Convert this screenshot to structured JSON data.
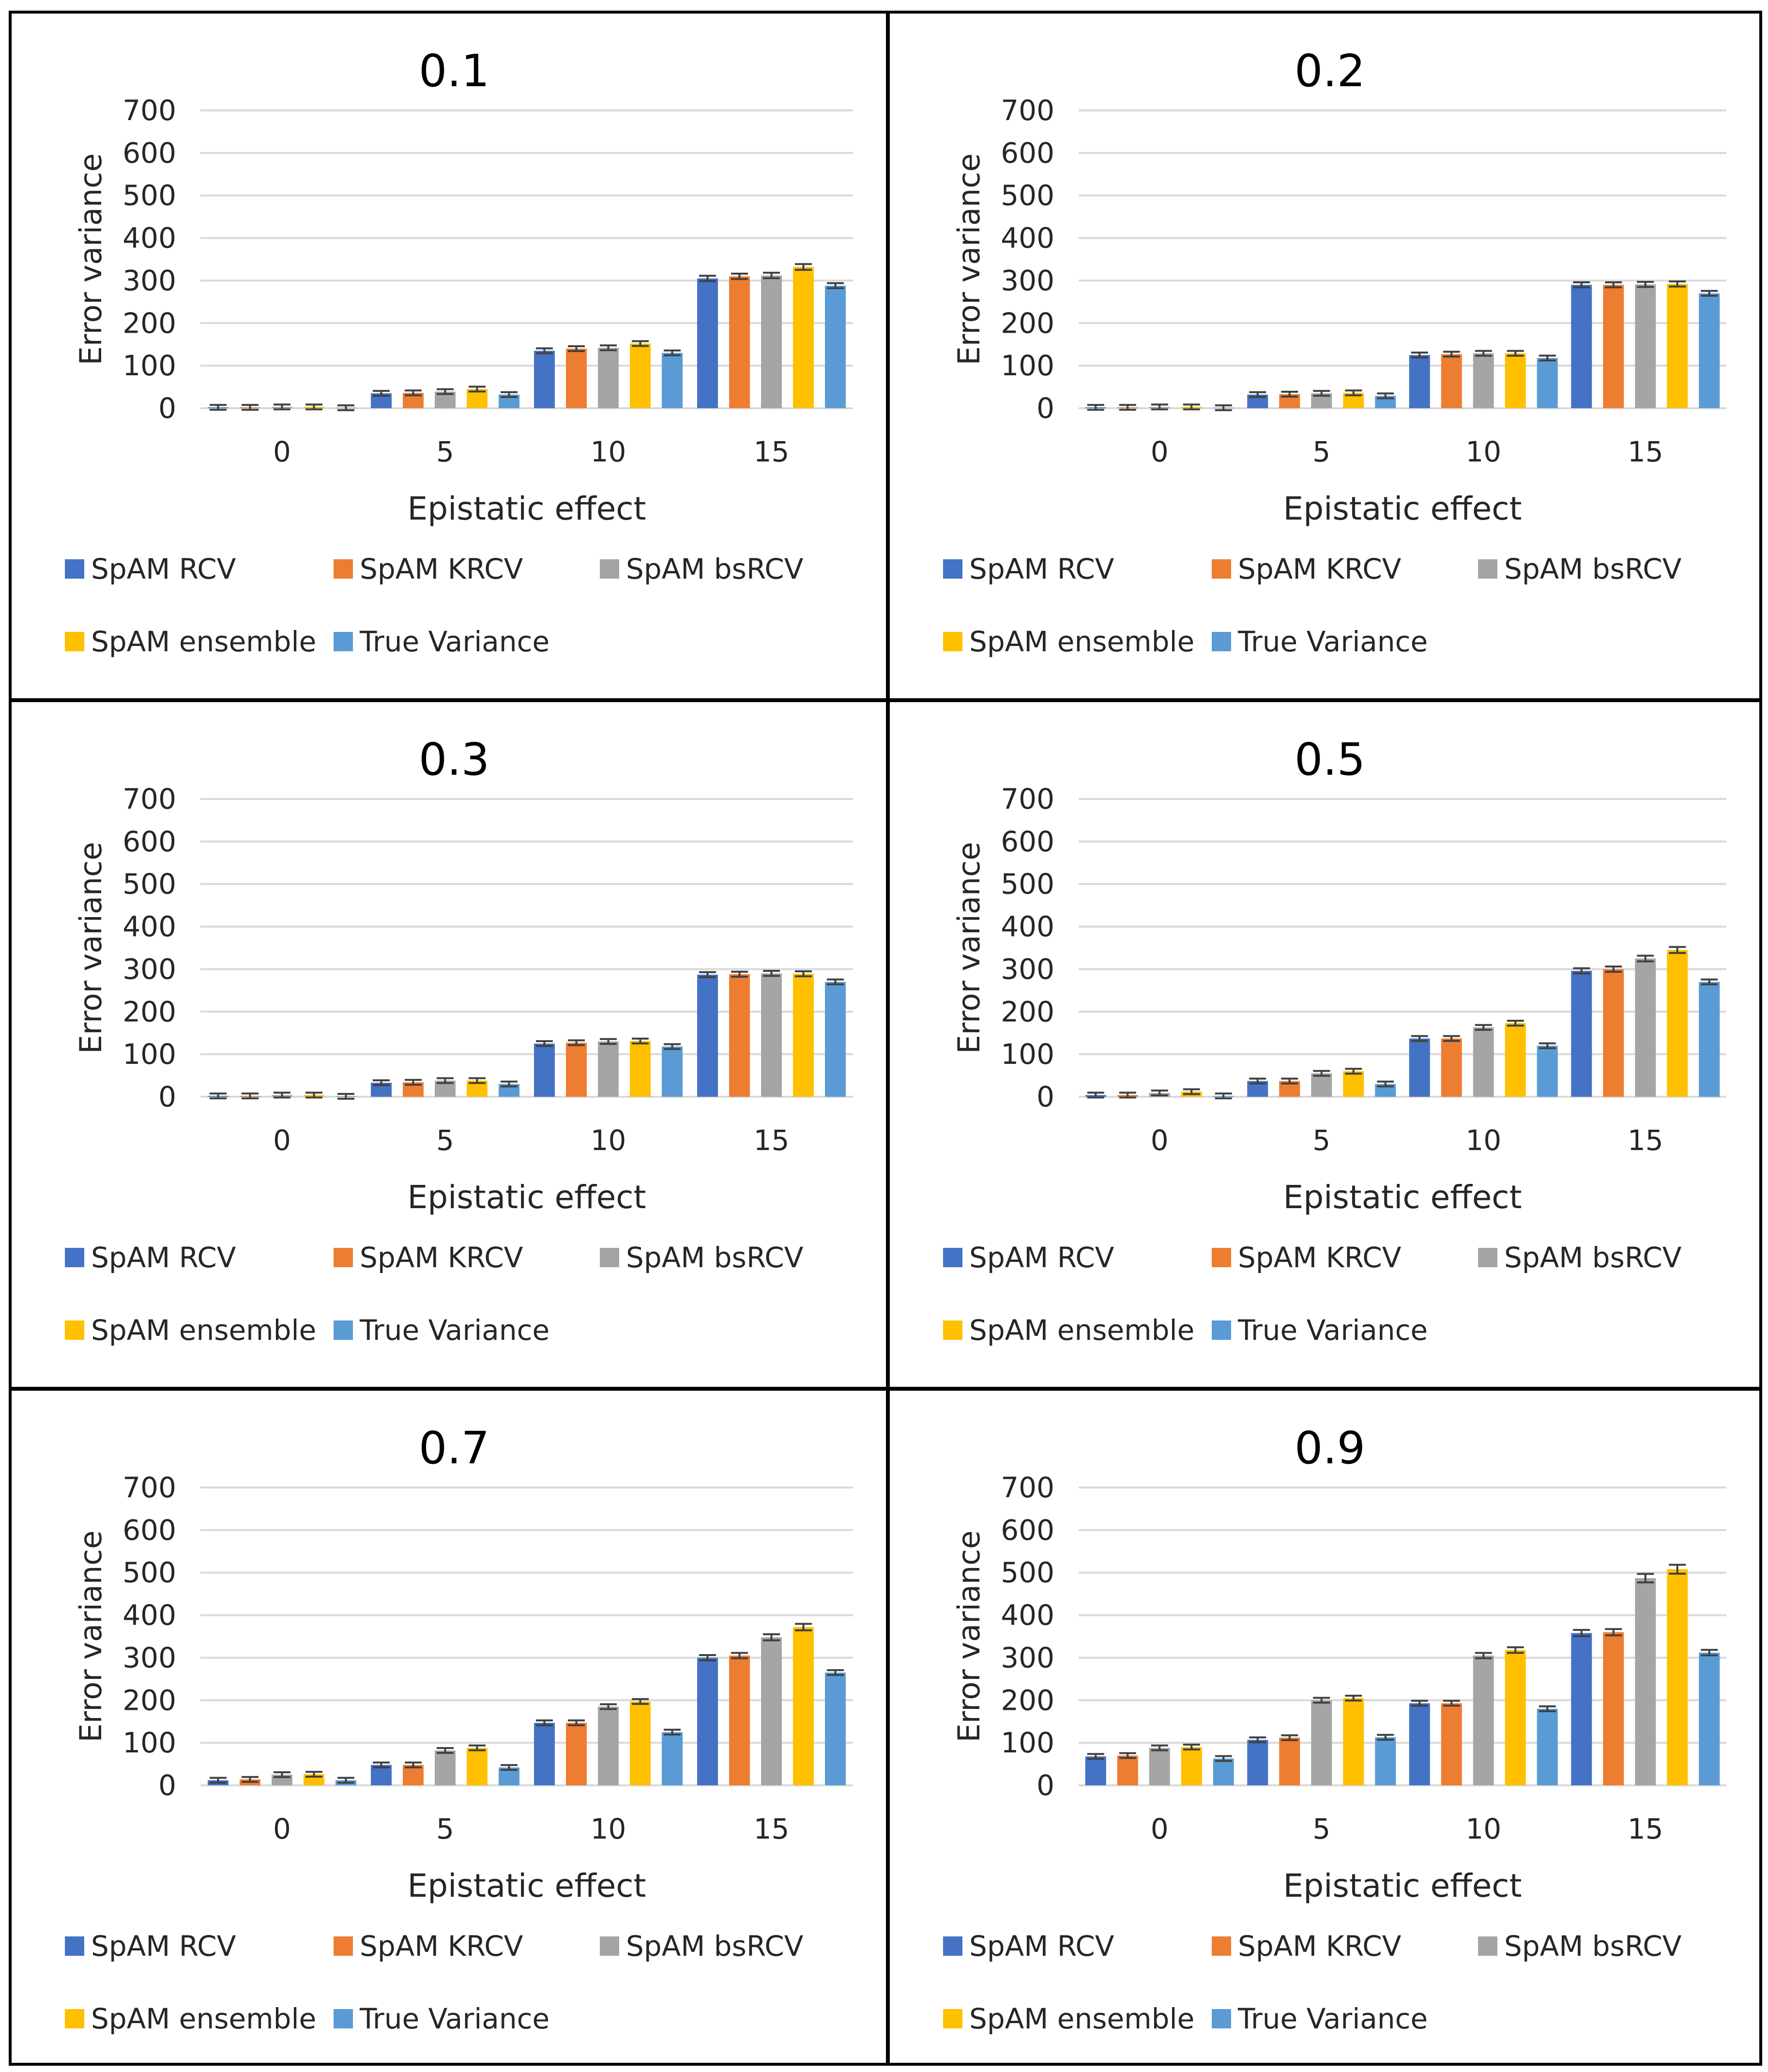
{
  "figure": {
    "series_names": [
      "SpAM RCV",
      "SpAM KRCV",
      "SpAM bsRCV",
      "SpAM ensemble",
      "True Variance"
    ],
    "series_colors": [
      "#4472C4",
      "#ED7D31",
      "#A5A5A5",
      "#FFC000",
      "#5B9BD5"
    ]
  },
  "chart_data": [
    {
      "type": "bar",
      "title": "0.1",
      "xlabel": "Epistatic effect",
      "ylabel": "Error variance",
      "categories": [
        "0",
        "5",
        "10",
        "15"
      ],
      "ylim": [
        0,
        700
      ],
      "yticks": [
        0,
        100,
        200,
        300,
        400,
        500,
        600,
        700
      ],
      "grid": true,
      "legend": "bottom",
      "series": [
        {
          "name": "SpAM RCV",
          "values": [
            2,
            35,
            135,
            305
          ]
        },
        {
          "name": "SpAM KRCV",
          "values": [
            2,
            36,
            140,
            310
          ]
        },
        {
          "name": "SpAM bsRCV",
          "values": [
            3,
            39,
            142,
            312
          ]
        },
        {
          "name": "SpAM ensemble",
          "values": [
            3,
            45,
            152,
            332
          ]
        },
        {
          "name": "True Variance",
          "values": [
            1,
            32,
            130,
            288
          ]
        }
      ]
    },
    {
      "type": "bar",
      "title": "0.2",
      "xlabel": "Epistatic effect",
      "ylabel": "Error variance",
      "categories": [
        "0",
        "5",
        "10",
        "15"
      ],
      "ylim": [
        0,
        700
      ],
      "yticks": [
        0,
        100,
        200,
        300,
        400,
        500,
        600,
        700
      ],
      "grid": true,
      "legend": "bottom",
      "series": [
        {
          "name": "SpAM RCV",
          "values": [
            2,
            32,
            125,
            290
          ]
        },
        {
          "name": "SpAM KRCV",
          "values": [
            2,
            33,
            127,
            290
          ]
        },
        {
          "name": "SpAM bsRCV",
          "values": [
            3,
            35,
            129,
            291
          ]
        },
        {
          "name": "SpAM ensemble",
          "values": [
            3,
            36,
            129,
            292
          ]
        },
        {
          "name": "True Variance",
          "values": [
            1,
            29,
            118,
            270
          ]
        }
      ]
    },
    {
      "type": "bar",
      "title": "0.3",
      "xlabel": "Epistatic effect",
      "ylabel": "Error variance",
      "categories": [
        "0",
        "5",
        "10",
        "15"
      ],
      "ylim": [
        0,
        700
      ],
      "yticks": [
        0,
        100,
        200,
        300,
        400,
        500,
        600,
        700
      ],
      "grid": true,
      "legend": "bottom",
      "series": [
        {
          "name": "SpAM RCV",
          "values": [
            2,
            33,
            125,
            287
          ]
        },
        {
          "name": "SpAM KRCV",
          "values": [
            2,
            34,
            127,
            288
          ]
        },
        {
          "name": "SpAM bsRCV",
          "values": [
            4,
            38,
            130,
            290
          ]
        },
        {
          "name": "SpAM ensemble",
          "values": [
            4,
            38,
            131,
            289
          ]
        },
        {
          "name": "True Variance",
          "values": [
            1,
            30,
            118,
            270
          ]
        }
      ]
    },
    {
      "type": "bar",
      "title": "0.5",
      "xlabel": "Epistatic effect",
      "ylabel": "Error variance",
      "categories": [
        "0",
        "5",
        "10",
        "15"
      ],
      "ylim": [
        0,
        700
      ],
      "yticks": [
        0,
        100,
        200,
        300,
        400,
        500,
        600,
        700
      ],
      "grid": true,
      "legend": "bottom",
      "series": [
        {
          "name": "SpAM RCV",
          "values": [
            4,
            37,
            137,
            296
          ]
        },
        {
          "name": "SpAM KRCV",
          "values": [
            4,
            37,
            137,
            300
          ]
        },
        {
          "name": "SpAM bsRCV",
          "values": [
            9,
            55,
            163,
            325
          ]
        },
        {
          "name": "SpAM ensemble",
          "values": [
            12,
            60,
            173,
            345
          ]
        },
        {
          "name": "True Variance",
          "values": [
            2,
            30,
            120,
            270
          ]
        }
      ]
    },
    {
      "type": "bar",
      "title": "0.7",
      "xlabel": "Epistatic effect",
      "ylabel": "Error variance",
      "categories": [
        "0",
        "5",
        "10",
        "15"
      ],
      "ylim": [
        0,
        700
      ],
      "yticks": [
        0,
        100,
        200,
        300,
        400,
        500,
        600,
        700
      ],
      "grid": true,
      "legend": "bottom",
      "series": [
        {
          "name": "SpAM RCV",
          "values": [
            12,
            48,
            147,
            300
          ]
        },
        {
          "name": "SpAM KRCV",
          "values": [
            14,
            48,
            147,
            305
          ]
        },
        {
          "name": "SpAM bsRCV",
          "values": [
            25,
            82,
            185,
            348
          ]
        },
        {
          "name": "SpAM ensemble",
          "values": [
            26,
            88,
            197,
            372
          ]
        },
        {
          "name": "True Variance",
          "values": [
            12,
            42,
            125,
            265
          ]
        }
      ]
    },
    {
      "type": "bar",
      "title": "0.9",
      "xlabel": "Epistatic effect",
      "ylabel": "Error variance",
      "categories": [
        "0",
        "5",
        "10",
        "15"
      ],
      "ylim": [
        0,
        700
      ],
      "yticks": [
        0,
        100,
        200,
        300,
        400,
        500,
        600,
        700
      ],
      "grid": true,
      "legend": "bottom",
      "series": [
        {
          "name": "SpAM RCV",
          "values": [
            68,
            107,
            193,
            358
          ]
        },
        {
          "name": "SpAM KRCV",
          "values": [
            70,
            112,
            193,
            360
          ]
        },
        {
          "name": "SpAM bsRCV",
          "values": [
            88,
            200,
            305,
            487
          ]
        },
        {
          "name": "SpAM ensemble",
          "values": [
            90,
            205,
            318,
            508
          ]
        },
        {
          "name": "True Variance",
          "values": [
            63,
            113,
            180,
            312
          ]
        }
      ]
    }
  ]
}
